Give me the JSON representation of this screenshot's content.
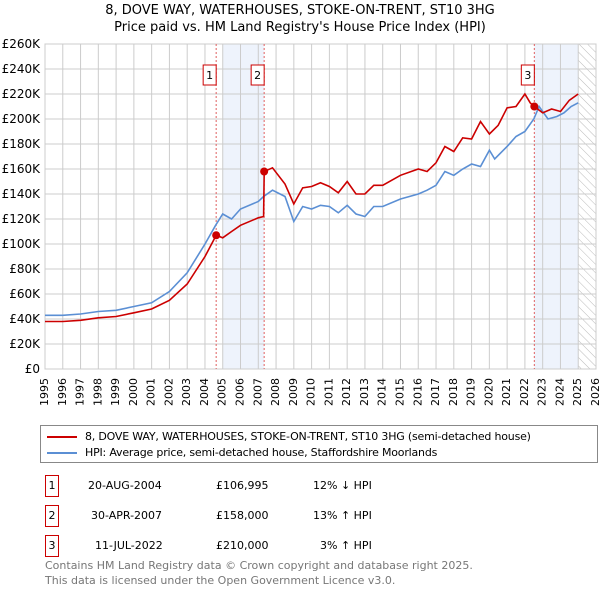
{
  "chart_data": {
    "type": "line",
    "title": "8, DOVE WAY, WATERHOUSES, STOKE-ON-TRENT, ST10 3HG",
    "subtitle": "Price paid vs. HM Land Registry's House Price Index (HPI)",
    "xlim": [
      1995,
      2026
    ],
    "ylim": [
      0,
      260000
    ],
    "x_ticks": [
      "1995",
      "1996",
      "1997",
      "1998",
      "1999",
      "2000",
      "2001",
      "2002",
      "2003",
      "2004",
      "2005",
      "2006",
      "2007",
      "2008",
      "2009",
      "2010",
      "2011",
      "2012",
      "2013",
      "2014",
      "2015",
      "2016",
      "2017",
      "2018",
      "2019",
      "2020",
      "2021",
      "2022",
      "2023",
      "2024",
      "2025",
      "2026"
    ],
    "y_ticks": [
      "£0",
      "£20K",
      "£40K",
      "£60K",
      "£80K",
      "£100K",
      "£120K",
      "£140K",
      "£160K",
      "£180K",
      "£200K",
      "£220K",
      "£240K",
      "£260K"
    ],
    "grid": true,
    "series": [
      {
        "name": "8, DOVE WAY, WATERHOUSES, STOKE-ON-TRENT, ST10 3HG (semi-detached house)",
        "color": "#cc0000",
        "x": [
          1995,
          1996,
          1997,
          1998,
          1999,
          2000,
          2001,
          2002,
          2003,
          2004,
          2004.63,
          2005,
          2005.5,
          2006,
          2007,
          2007.3,
          2007.33,
          2007.8,
          2008.5,
          2009,
          2009.5,
          2010,
          2010.5,
          2011,
          2011.5,
          2012,
          2012.5,
          2013,
          2013.5,
          2014,
          2015,
          2016,
          2016.5,
          2017,
          2017.5,
          2018,
          2018.5,
          2019,
          2019.5,
          2020,
          2020.5,
          2021,
          2021.5,
          2022,
          2022.3,
          2022.53,
          2023,
          2023.5,
          2024,
          2024.5,
          2025
        ],
        "y": [
          38000,
          38000,
          39000,
          41000,
          42000,
          45000,
          48000,
          55000,
          68000,
          90000,
          106995,
          105000,
          110000,
          115000,
          121000,
          122000,
          158000,
          161000,
          148000,
          132000,
          145000,
          146000,
          149000,
          146000,
          141000,
          150000,
          140000,
          140000,
          147000,
          147000,
          155000,
          160000,
          158000,
          165000,
          178000,
          174000,
          185000,
          184000,
          198000,
          188000,
          195000,
          209000,
          210000,
          220000,
          213000,
          210000,
          205000,
          208000,
          206000,
          215000,
          220000
        ]
      },
      {
        "name": "HPI: Average price, semi-detached house, Staffordshire Moorlands",
        "color": "#5b8fd4",
        "x": [
          1995,
          1996,
          1997,
          1998,
          1999,
          2000,
          2001,
          2002,
          2003,
          2004,
          2004.6,
          2005,
          2005.5,
          2006,
          2007,
          2007.3,
          2007.8,
          2008.5,
          2009,
          2009.5,
          2010,
          2010.5,
          2011,
          2011.5,
          2012,
          2012.5,
          2013,
          2013.5,
          2014,
          2015,
          2016,
          2016.5,
          2017,
          2017.5,
          2018,
          2018.5,
          2019,
          2019.5,
          2020,
          2020.3,
          2021,
          2021.5,
          2022,
          2022.5,
          2022.8,
          2023.3,
          2023.8,
          2024.2,
          2024.6,
          2025
        ],
        "y": [
          43000,
          43000,
          44000,
          46000,
          47000,
          50000,
          53000,
          62000,
          77000,
          100000,
          115000,
          124000,
          120000,
          128000,
          134000,
          138000,
          143000,
          138000,
          118000,
          130000,
          128000,
          131000,
          130000,
          125000,
          131000,
          124000,
          122000,
          130000,
          130000,
          136000,
          140000,
          143000,
          147000,
          158000,
          155000,
          160000,
          164000,
          162000,
          175000,
          168000,
          178000,
          186000,
          190000,
          200000,
          210000,
          200000,
          202000,
          205000,
          210000,
          213000
        ]
      }
    ],
    "sales": [
      {
        "label": "1",
        "date": "20-AUG-2004",
        "x": 2004.63,
        "price_value": 106995,
        "price": "£106,995",
        "hpi": "12% ↓ HPI"
      },
      {
        "label": "2",
        "date": "30-APR-2007",
        "x": 2007.33,
        "price_value": 158000,
        "price": "£158,000",
        "hpi": "13% ↑ HPI"
      },
      {
        "label": "3",
        "date": "11-JUL-2022",
        "x": 2022.53,
        "price_value": 210000,
        "price": "£210,000",
        "hpi": "3% ↑ HPI"
      }
    ],
    "shaded_ranges": [
      [
        2005,
        2007.33
      ],
      [
        2022.53,
        2025
      ]
    ],
    "future_hatch_from": 2025
  },
  "footer": {
    "line1": "Contains HM Land Registry data © Crown copyright and database right 2025.",
    "line2": "This data is licensed under the Open Government Licence v3.0."
  }
}
